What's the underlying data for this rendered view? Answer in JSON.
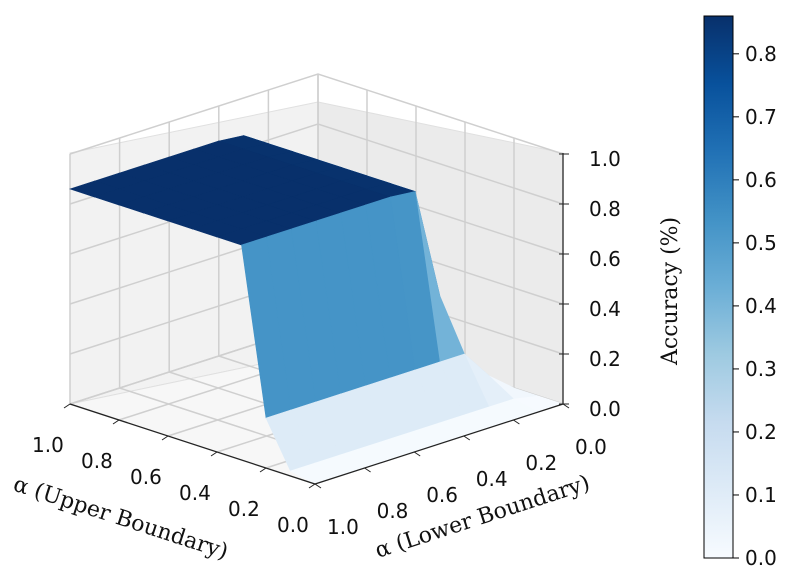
{
  "chart_data": {
    "type": "surface",
    "colormap": "Blues",
    "x_axis": {
      "label": "α (Upper Boundary)",
      "ticks": [
        "1.0",
        "0.8",
        "0.6",
        "0.4",
        "0.2",
        "0.0"
      ]
    },
    "y_axis": {
      "label": "α (Lower Boundary)",
      "ticks": [
        "1.0",
        "0.8",
        "0.6",
        "0.4",
        "0.2",
        "0.0"
      ]
    },
    "z_axis": {
      "label": "Accuracy (%)",
      "ticks": [
        "0.0",
        "0.2",
        "0.4",
        "0.6",
        "0.8",
        "1.0"
      ],
      "range": [
        0,
        1.0
      ]
    },
    "colorbar": {
      "ticks": [
        "0.0",
        "0.1",
        "0.2",
        "0.3",
        "0.4",
        "0.5",
        "0.6",
        "0.7",
        "0.8"
      ],
      "range": [
        0,
        0.86
      ]
    },
    "grid": true,
    "grid_note": "upper boundary (rows) vs lower boundary (columns), 11x11 grid from 0.0 to 1.0",
    "upper_boundary": [
      1.0,
      0.9,
      0.8,
      0.7,
      0.6,
      0.5,
      0.4,
      0.3,
      0.2,
      0.1,
      0.0
    ],
    "lower_boundary": [
      1.0,
      0.9,
      0.8,
      0.7,
      0.6,
      0.5,
      0.4,
      0.3,
      0.2,
      0.1,
      0.0
    ],
    "accuracy": [
      [
        0.86,
        0.86,
        0.86,
        0.86,
        0.86,
        0.86,
        0.86,
        0.85,
        0.4,
        0.1,
        0.0
      ],
      [
        0.86,
        0.86,
        0.86,
        0.86,
        0.86,
        0.86,
        0.86,
        0.85,
        0.4,
        0.1,
        0.0
      ],
      [
        0.86,
        0.86,
        0.86,
        0.86,
        0.86,
        0.86,
        0.86,
        0.85,
        0.4,
        0.1,
        0.0
      ],
      [
        0.86,
        0.86,
        0.86,
        0.86,
        0.86,
        0.86,
        0.86,
        0.85,
        0.4,
        0.1,
        0.0
      ],
      [
        0.86,
        0.86,
        0.86,
        0.86,
        0.86,
        0.86,
        0.86,
        0.85,
        0.4,
        0.1,
        0.0
      ],
      [
        0.86,
        0.86,
        0.86,
        0.86,
        0.86,
        0.86,
        0.86,
        0.85,
        0.4,
        0.1,
        0.0
      ],
      [
        0.86,
        0.86,
        0.86,
        0.86,
        0.86,
        0.86,
        0.86,
        0.85,
        0.4,
        0.1,
        0.0
      ],
      [
        0.86,
        0.86,
        0.86,
        0.86,
        0.86,
        0.86,
        0.86,
        0.85,
        0.4,
        0.1,
        0.0
      ],
      [
        0.2,
        0.2,
        0.2,
        0.2,
        0.2,
        0.2,
        0.2,
        0.2,
        0.2,
        0.08,
        0.0
      ],
      [
        0.02,
        0.02,
        0.02,
        0.02,
        0.02,
        0.02,
        0.02,
        0.02,
        0.02,
        0.02,
        0.0
      ],
      [
        0.0,
        0.0,
        0.0,
        0.0,
        0.0,
        0.0,
        0.0,
        0.0,
        0.0,
        0.0,
        0.0
      ]
    ]
  }
}
